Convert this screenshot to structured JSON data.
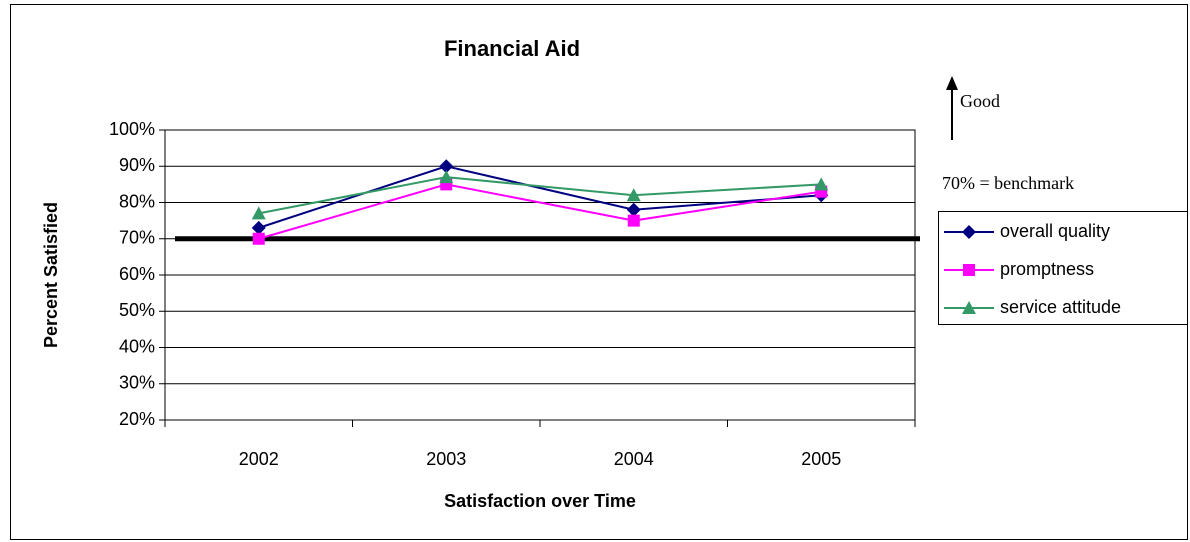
{
  "chart_data": {
    "type": "line",
    "title": "Financial Aid",
    "x_label": "Satisfaction over Time",
    "y_label": "Percent Satisfied",
    "categories": [
      "2002",
      "2003",
      "2004",
      "2005"
    ],
    "series": [
      {
        "name": "overall quality",
        "color": "#000080",
        "marker": "diamond",
        "values": [
          73,
          90,
          78,
          82
        ]
      },
      {
        "name": "promptness",
        "color": "#ff00ff",
        "marker": "square",
        "values": [
          70,
          85,
          75,
          83
        ]
      },
      {
        "name": "service attitude",
        "color": "#339966",
        "marker": "triangle",
        "values": [
          77,
          87,
          82,
          85
        ]
      }
    ],
    "ylim": [
      20,
      100
    ],
    "yticks": [
      {
        "value": 20,
        "label": "20%"
      },
      {
        "value": 30,
        "label": "30%"
      },
      {
        "value": 40,
        "label": "40%"
      },
      {
        "value": 50,
        "label": "50%"
      },
      {
        "value": 60,
        "label": "60%"
      },
      {
        "value": 70,
        "label": "70%"
      },
      {
        "value": 80,
        "label": "80%"
      },
      {
        "value": 90,
        "label": "90%"
      },
      {
        "value": 100,
        "label": "100%"
      }
    ],
    "grid": true,
    "benchmark": 70,
    "annotations": [
      "Good",
      "70% = benchmark"
    ],
    "legend": "right"
  }
}
